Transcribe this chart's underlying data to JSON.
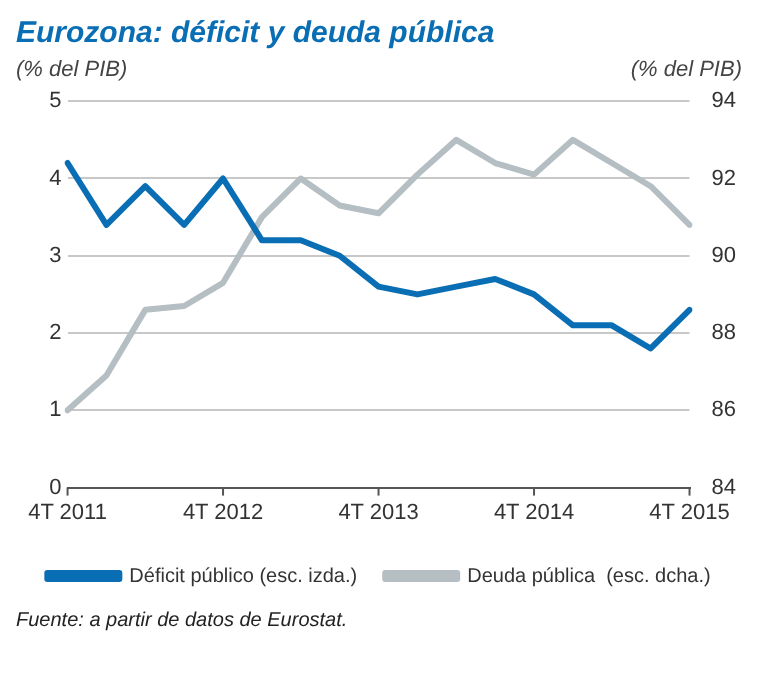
{
  "chart_data": {
    "type": "line",
    "title": "Eurozona: déficit y deuda pública",
    "ylabel": "(% del PIB)",
    "y2label": "(% del PIB)",
    "categories": [
      "4T 2011",
      null,
      null,
      null,
      "4T 2012",
      null,
      null,
      null,
      "4T 2013",
      null,
      null,
      null,
      "4T 2014",
      null,
      null,
      null,
      "4T 2015"
    ],
    "series": [
      {
        "name": "Déficit público (esc. izda.)",
        "color": "#0a6eb4",
        "values": [
          4.2,
          3.4,
          3.9,
          3.4,
          4.0,
          3.2,
          3.2,
          3.0,
          2.6,
          2.5,
          2.6,
          2.7,
          2.5,
          2.1,
          2.1,
          1.8,
          2.3
        ]
      },
      {
        "name": "Deuda pública  (esc. dcha.)",
        "color": "#b4bec3",
        "axis": "y2",
        "values": [
          86.0,
          86.9,
          88.6,
          88.7,
          89.3,
          91.0,
          92.0,
          91.3,
          91.1,
          92.1,
          93.0,
          92.4,
          92.1,
          93.0,
          92.4,
          91.8,
          90.8
        ]
      }
    ],
    "ylim": [
      0,
      5
    ],
    "yticks": [
      0,
      1,
      2,
      3,
      4,
      5
    ],
    "y2lim": [
      84,
      94
    ],
    "y2ticks": [
      84,
      86,
      88,
      90,
      92,
      94
    ],
    "grid": "y",
    "legend": "bottom",
    "marker": "none",
    "line_style": "solid",
    "annotations": [
      "Fuente: a partir de datos de Eurostat."
    ]
  }
}
